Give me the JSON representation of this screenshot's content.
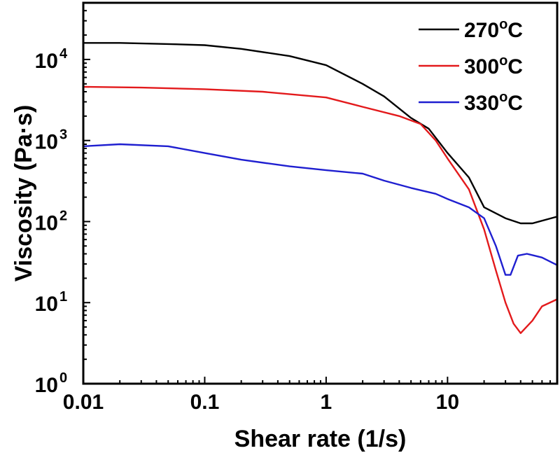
{
  "chart_data": {
    "type": "line",
    "xlabel": "Shear rate (1/s)",
    "ylabel": "Viscosity (Pa·s)",
    "x_scale": "log",
    "y_scale": "log",
    "xlim": [
      0.01,
      80
    ],
    "ylim": [
      1,
      50000
    ],
    "x_ticks": [
      {
        "value": 0.01,
        "label": "0.01"
      },
      {
        "value": 0.1,
        "label": "0.1"
      },
      {
        "value": 1,
        "label": "1"
      },
      {
        "value": 10,
        "label": "10"
      }
    ],
    "y_ticks": [
      {
        "value": 1,
        "base": "10",
        "exp": "0"
      },
      {
        "value": 10,
        "base": "10",
        "exp": "1"
      },
      {
        "value": 100,
        "base": "10",
        "exp": "2"
      },
      {
        "value": 1000,
        "base": "10",
        "exp": "3"
      },
      {
        "value": 10000,
        "base": "10",
        "exp": "4"
      }
    ],
    "grid": false,
    "legend_position": "top-right",
    "series": [
      {
        "name": "270°C",
        "name_value": "270",
        "name_sup": "o",
        "name_unit": "C",
        "color": "#000000",
        "points": [
          [
            0.01,
            16000
          ],
          [
            0.02,
            16000
          ],
          [
            0.05,
            15500
          ],
          [
            0.1,
            15000
          ],
          [
            0.2,
            13500
          ],
          [
            0.5,
            11000
          ],
          [
            1,
            8500
          ],
          [
            2,
            5000
          ],
          [
            3,
            3500
          ],
          [
            5,
            1900
          ],
          [
            7,
            1400
          ],
          [
            10,
            700
          ],
          [
            15,
            350
          ],
          [
            20,
            150
          ],
          [
            30,
            110
          ],
          [
            40,
            95
          ],
          [
            50,
            95
          ],
          [
            80,
            115
          ]
        ]
      },
      {
        "name": "300°C",
        "name_value": "300",
        "name_sup": "o",
        "name_unit": "C",
        "color": "#e31a1c",
        "points": [
          [
            0.01,
            4600
          ],
          [
            0.03,
            4500
          ],
          [
            0.1,
            4300
          ],
          [
            0.3,
            4000
          ],
          [
            1,
            3400
          ],
          [
            2,
            2600
          ],
          [
            4,
            2000
          ],
          [
            6,
            1600
          ],
          [
            8,
            1000
          ],
          [
            10,
            600
          ],
          [
            15,
            250
          ],
          [
            20,
            80
          ],
          [
            25,
            25
          ],
          [
            30,
            10
          ],
          [
            35,
            5.5
          ],
          [
            40,
            4.2
          ],
          [
            50,
            6
          ],
          [
            60,
            9
          ],
          [
            80,
            11
          ]
        ]
      },
      {
        "name": "330°C",
        "name_value": "330",
        "name_sup": "o",
        "name_unit": "C",
        "color": "#1f1fd0",
        "points": [
          [
            0.01,
            850
          ],
          [
            0.02,
            900
          ],
          [
            0.05,
            850
          ],
          [
            0.1,
            700
          ],
          [
            0.2,
            580
          ],
          [
            0.5,
            480
          ],
          [
            1,
            430
          ],
          [
            2,
            390
          ],
          [
            3,
            320
          ],
          [
            5,
            260
          ],
          [
            8,
            220
          ],
          [
            10,
            190
          ],
          [
            15,
            150
          ],
          [
            20,
            110
          ],
          [
            25,
            50
          ],
          [
            30,
            22
          ],
          [
            33,
            22
          ],
          [
            38,
            38
          ],
          [
            45,
            40
          ],
          [
            60,
            36
          ],
          [
            80,
            29
          ]
        ]
      }
    ]
  }
}
